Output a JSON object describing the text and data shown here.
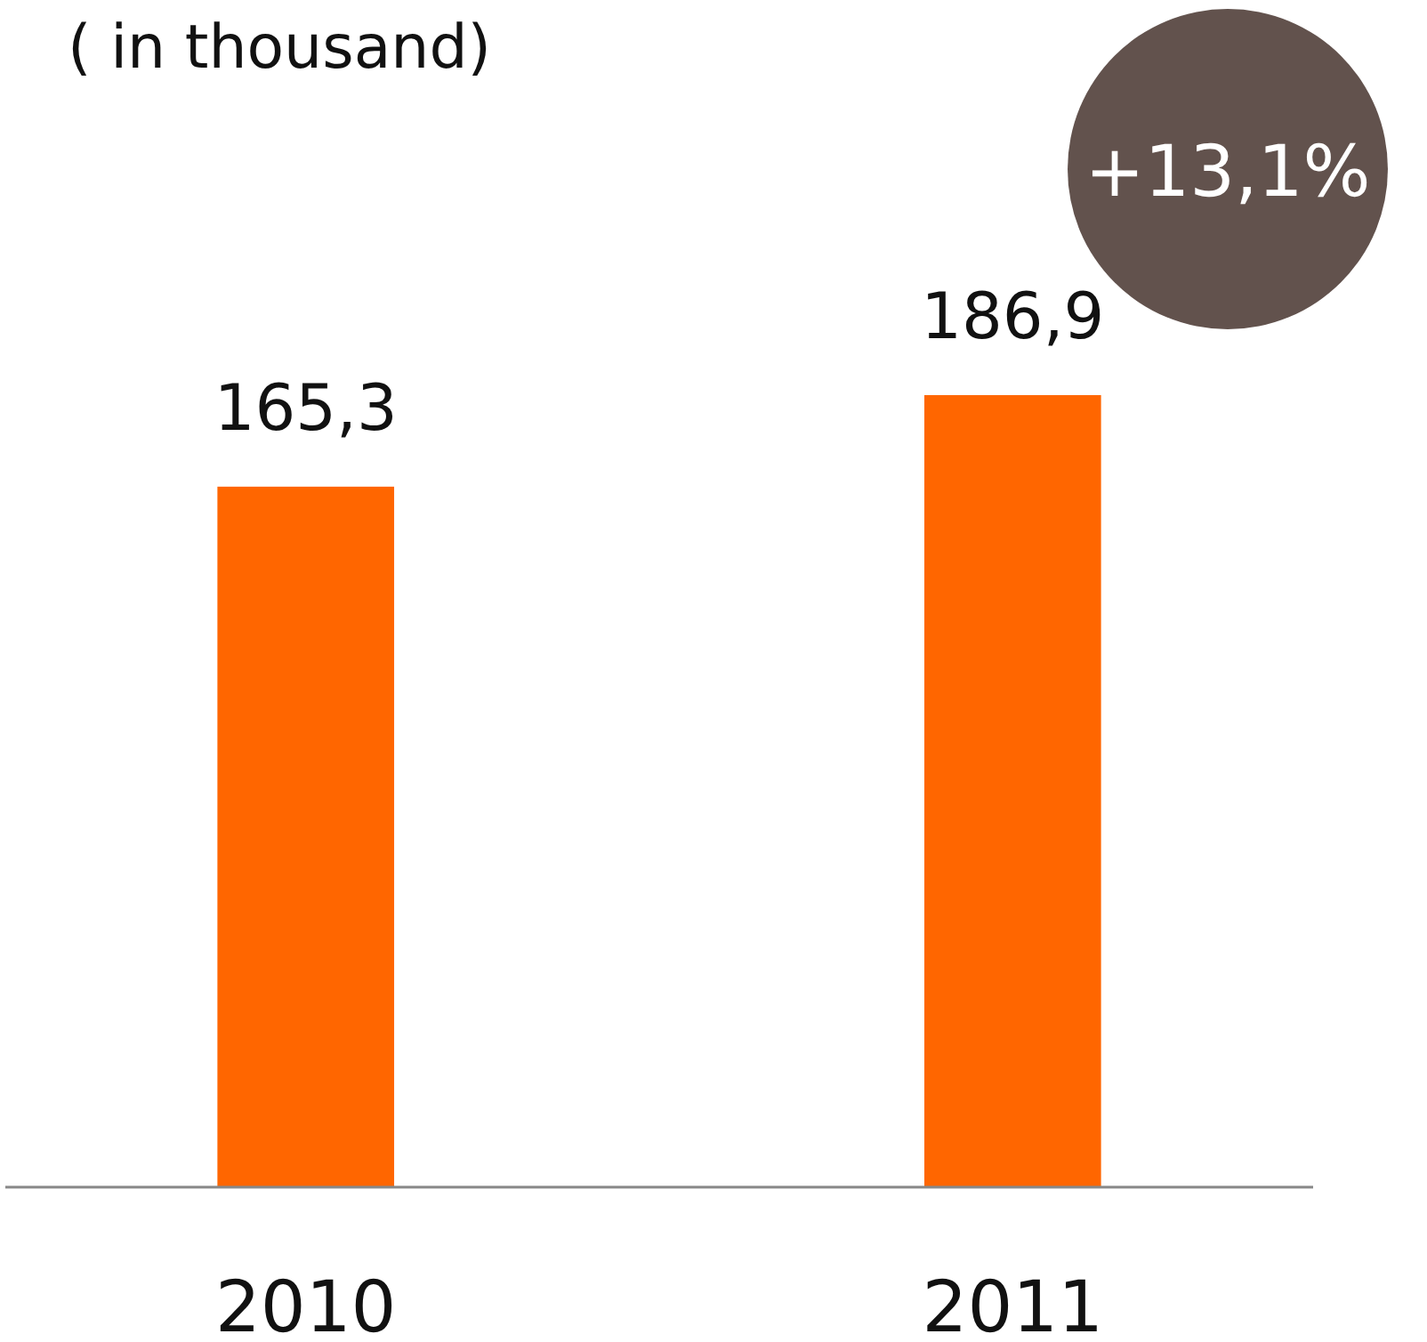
{
  "chart_data": {
    "type": "bar",
    "title": "( in thousand)",
    "categories": [
      "2010",
      "2011"
    ],
    "values": [
      165.3,
      186.9
    ],
    "value_labels": [
      "165,3",
      "186,9"
    ],
    "color": "#ff6600",
    "annotations": [
      "+13,1%"
    ]
  }
}
